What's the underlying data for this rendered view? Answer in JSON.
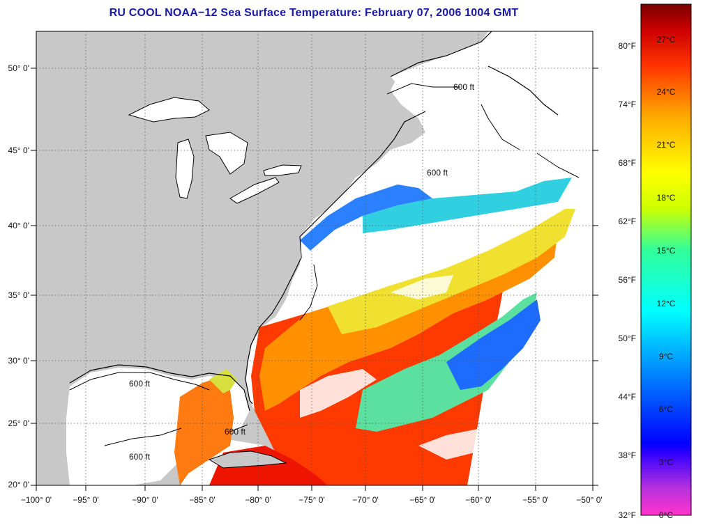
{
  "title": "RU COOL  NOAA−12  Sea Surface Temperature:  February 07, 2006 1004 GMT",
  "map": {
    "longitude_labels": [
      "−100° 0'",
      "−95° 0'",
      "−90° 0'",
      "−85° 0'",
      "−80° 0'",
      "−75° 0'",
      "−70° 0'",
      "−65° 0'",
      "−60° 0'",
      "−55° 0'",
      "−50° 0'"
    ],
    "latitude_labels": [
      "50° 0'",
      "45° 0'",
      "40° 0'",
      "35° 0'",
      "30° 0'",
      "25° 0'",
      "20° 0'"
    ],
    "depth_contour_label": "600 ft",
    "colors": {
      "land": "#c8c8c8",
      "cloud_no_data": "#ffffff",
      "coast": "#000000",
      "grid": "#555555"
    }
  },
  "colorbar": {
    "fahrenheit_labels": [
      "80°F",
      "74°F",
      "68°F",
      "62°F",
      "56°F",
      "50°F",
      "44°F",
      "38°F",
      "32°F"
    ],
    "celsius_labels": [
      "27°C",
      "24°C",
      "21°C",
      "18°C",
      "15°C",
      "12°C",
      "9°C",
      "6°C",
      "3°C",
      "0°C"
    ],
    "gradient_stops": [
      "#ff33cc",
      "#8a2be2",
      "#0000ff",
      "#00aaff",
      "#00ffff",
      "#33ff99",
      "#ccff00",
      "#ffff00",
      "#ffaa00",
      "#ff4400",
      "#e00000",
      "#7a0000"
    ]
  }
}
